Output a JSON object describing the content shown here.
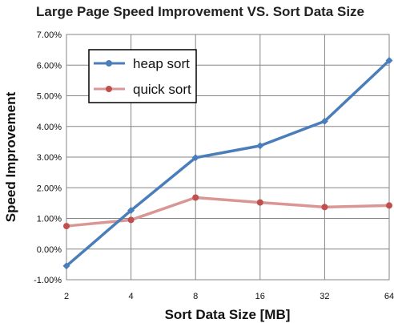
{
  "chart_data": {
    "type": "line",
    "title": "Large Page Speed Improvement VS. Sort Data Size",
    "xlabel": "Sort Data Size [MB]",
    "ylabel": "Speed Improvement",
    "categories": [
      "2",
      "4",
      "8",
      "16",
      "32",
      "64"
    ],
    "yticks": [
      "-1.00%",
      "0.00%",
      "1.00%",
      "2.00%",
      "3.00%",
      "4.00%",
      "5.00%",
      "6.00%",
      "7.00%"
    ],
    "ylim": [
      -1,
      7
    ],
    "grid": true,
    "legend_position": "top-left",
    "series": [
      {
        "name": "heap sort",
        "color": "#4a7ebb",
        "values": [
          -0.55,
          1.26,
          2.98,
          3.37,
          4.17,
          6.15
        ]
      },
      {
        "name": "quick sort",
        "color": "#d99694",
        "marker_color": "#c0504d",
        "values": [
          0.75,
          0.95,
          1.68,
          1.52,
          1.37,
          1.42
        ]
      }
    ]
  }
}
